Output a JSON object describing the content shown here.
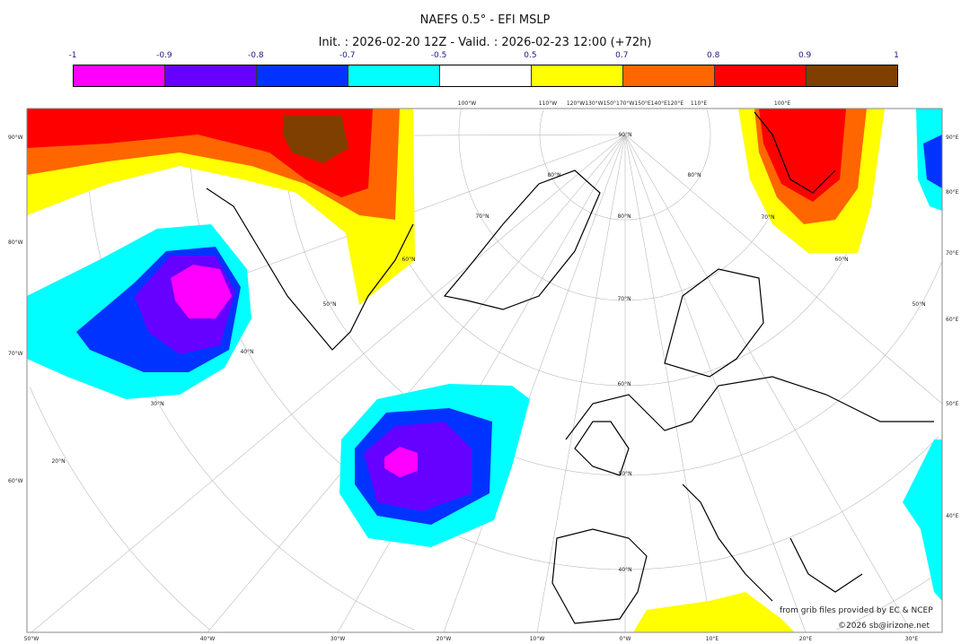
{
  "header": {
    "title": "NAEFS 0.5° - EFI MSLP",
    "subtitle": "Init. : 2026-02-20 12Z - Valid. : 2026-02-23 12:00 (+72h)"
  },
  "colorbar": {
    "labels": [
      "-1",
      "-0.9",
      "-0.8",
      "-0.7",
      "-0.5",
      "0.5",
      "0.7",
      "0.8",
      "0.9",
      "1"
    ],
    "colors": [
      "#ff00ff",
      "#6600ff",
      "#0033ff",
      "#00ffff",
      "#ffffff",
      "#ffff00",
      "#ff6600",
      "#ff0000",
      "#7f3f00"
    ]
  },
  "map": {
    "left_labels": [
      "90°W",
      "80°W",
      "70°W",
      "60°W"
    ],
    "right_labels": [
      "90°E",
      "80°E",
      "70°E",
      "60°E",
      "50°E",
      "40°E"
    ],
    "bottom_labels": [
      "50°W",
      "40°W",
      "30°W",
      "20°W",
      "10°W",
      "0°W",
      "10°E",
      "20°E",
      "30°E"
    ],
    "top_labels": [
      "100°W",
      "110°W",
      "120°W130°W150°170°W150°E140°E120°E",
      "110°E",
      "100°E"
    ],
    "lat_labels": [
      "90°N",
      "80°N",
      "80°N",
      "70°N",
      "70°N",
      "60°N",
      "60°N",
      "50°N",
      "50°N",
      "40°N",
      "40°N",
      "30°N",
      "20°N",
      "70°N",
      "60°N",
      "80°N",
      "50°N"
    ]
  },
  "credits": {
    "source": "from grib files provided by EC & NCEP",
    "copyright": "©2026 sb@irizone.net"
  }
}
